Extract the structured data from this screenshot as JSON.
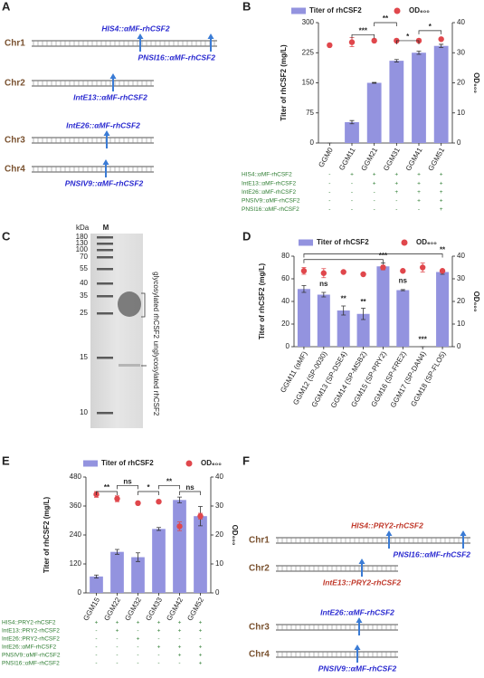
{
  "panel_labels": [
    "A",
    "B",
    "C",
    "D",
    "E",
    "F"
  ],
  "diagrams": [
    {
      "chromosomes": [
        {
          "name": "Chr1",
          "loci": [
            {
              "name": "HIS4::αMF-rhCSF2",
              "color": "#2a2ad0"
            },
            {
              "name": "PNSI16::αMF-rhCSF2",
              "color": "#2a2ad0"
            }
          ]
        },
        {
          "name": "Chr2",
          "loci": [
            {
              "name": "IntE13::αMF-rhCSF2",
              "color": "#2a2ad0"
            }
          ]
        },
        {
          "name": "Chr3",
          "loci": [
            {
              "name": "IntE26::αMF-rhCSF2",
              "color": "#2a2ad0"
            }
          ]
        },
        {
          "name": "Chr4",
          "loci": [
            {
              "name": "PNSIV9::αMF-rhCSF2",
              "color": "#2a2ad0"
            }
          ]
        }
      ]
    },
    {
      "chromosomes": [
        {
          "name": "Chr1",
          "loci": [
            {
              "name": "HIS4::PRY2-rhCSF2",
              "color": "#c0392b"
            },
            {
              "name": "PNSI16::αMF-rhCSF2",
              "color": "#2a2ad0"
            }
          ]
        },
        {
          "name": "Chr2",
          "loci": [
            {
              "name": "IntE13::PRY2-rhCSF2",
              "color": "#c0392b"
            }
          ]
        },
        {
          "name": "Chr3",
          "loci": [
            {
              "name": "IntE26::αMF-rhCSF2",
              "color": "#2a2ad0"
            }
          ]
        },
        {
          "name": "Chr4",
          "loci": [
            {
              "name": "PNSIV9::αMF-rhCSF2",
              "color": "#2a2ad0"
            }
          ]
        }
      ]
    }
  ],
  "gel": {
    "unit": "kDa",
    "lane": "M",
    "markers": [
      180,
      130,
      100,
      70,
      55,
      40,
      35,
      25,
      15,
      10
    ],
    "bands": [
      "glycosylated rhCSF2",
      "unglycosylated rhCSF2"
    ]
  },
  "chart_data": [
    {
      "type": "bar",
      "ylabel": "Titer of rhCSF2 (mg/L)",
      "y2label": "OD₆₀₀",
      "categories": [
        "GGM0",
        "GGM11",
        "GGM21",
        "GGM31",
        "GGM41",
        "GGM51"
      ],
      "series": [
        {
          "name": "Titer of rhCSF2",
          "color": "#9393df",
          "values": [
            0,
            52,
            150,
            205,
            225,
            242
          ],
          "errors": [
            0,
            4,
            1,
            3,
            4,
            4
          ]
        },
        {
          "name": "OD₆₀₀",
          "type": "scatter",
          "axis": "y2",
          "color": "#e0474c",
          "values": [
            32.5,
            33.5,
            34,
            34,
            34,
            34.5
          ],
          "errors": [
            0,
            1.5,
            0,
            0,
            0,
            0
          ]
        }
      ],
      "ylim": [
        0,
        300
      ],
      "yticks": [
        0,
        75,
        150,
        225,
        300
      ],
      "y2lim": [
        0,
        40
      ],
      "y2ticks": [
        0,
        10,
        20,
        30,
        40
      ],
      "annotations": [
        "***",
        "**",
        "*",
        "*"
      ],
      "table": [
        {
          "label": "HIS4::αMF-rhCSF2",
          "cells": [
            "-",
            "+",
            "+",
            "+",
            "+",
            "+"
          ]
        },
        {
          "label": "IntE13::αMF-rhCSF2",
          "cells": [
            "-",
            "-",
            "+",
            "+",
            "+",
            "+"
          ]
        },
        {
          "label": "IntE26::αMF-rhCSF2",
          "cells": [
            "-",
            "-",
            "-",
            "+",
            "+",
            "+"
          ]
        },
        {
          "label": "PNSIV9::αMF-rhCSF2",
          "cells": [
            "-",
            "-",
            "-",
            "-",
            "+",
            "+"
          ]
        },
        {
          "label": "PNSI16::αMF-rhCSF2",
          "cells": [
            "-",
            "-",
            "-",
            "-",
            "-",
            "+"
          ]
        }
      ]
    },
    {
      "type": "bar",
      "ylabel": "Titer of rhCSF2 (mg/L)",
      "y2label": "OD₆₀₀",
      "categories": [
        "GGM11 (αMF)",
        "GGM12 (SP-0030)",
        "GGM13 (SP-DSE4)",
        "GGM14 (SP-MSB2)",
        "GGM15 (SP-PRY2)",
        "GGM16 (SP-FRE2)",
        "GGM17 (SP-DAN4)",
        "GGM18 (SP-FLO5)"
      ],
      "series": [
        {
          "name": "Titer of rhCSF2",
          "color": "#9393df",
          "values": [
            51,
            46,
            32,
            29,
            71,
            50,
            0,
            66
          ],
          "errors": [
            3,
            2,
            4,
            5,
            3,
            0.5,
            0,
            2
          ]
        },
        {
          "name": "OD₆₀₀",
          "type": "scatter",
          "axis": "y2",
          "color": "#e0474c",
          "values": [
            33.5,
            32.5,
            33,
            32,
            35,
            33.5,
            35,
            33.5
          ],
          "errors": [
            1.5,
            2,
            0,
            0,
            1,
            0,
            2,
            0
          ]
        }
      ],
      "ylim": [
        0,
        80
      ],
      "yticks": [
        0,
        20,
        40,
        60,
        80
      ],
      "y2lim": [
        0,
        40
      ],
      "y2ticks": [
        0,
        10,
        20,
        30,
        40
      ],
      "annotations": [
        "ns",
        "**",
        "**",
        "***",
        "ns",
        "***",
        "**"
      ]
    },
    {
      "type": "bar",
      "ylabel": "Titer of rhCSF2 (mg/L)",
      "y2label": "OD₆₀₀",
      "categories": [
        "GGM15",
        "GGM22",
        "GGM32",
        "GGM33",
        "GGM42",
        "GGM52"
      ],
      "series": [
        {
          "name": "Titer of rhCSF2",
          "color": "#9393df",
          "values": [
            68,
            170,
            148,
            265,
            385,
            318
          ],
          "errors": [
            6,
            10,
            18,
            6,
            12,
            40
          ]
        },
        {
          "name": "OD₆₀₀",
          "type": "scatter",
          "axis": "y2",
          "color": "#e0474c",
          "values": [
            34,
            32.5,
            31,
            31.5,
            23,
            26.5
          ],
          "errors": [
            1,
            1,
            0.5,
            0,
            1.5,
            1
          ]
        }
      ],
      "ylim": [
        0,
        480
      ],
      "yticks": [
        0,
        120,
        240,
        360,
        480
      ],
      "y2lim": [
        0,
        40
      ],
      "y2ticks": [
        0,
        10,
        20,
        30,
        40
      ],
      "annotations": [
        "**",
        "ns",
        "*",
        "**",
        "ns"
      ],
      "table": [
        {
          "label": "HIS4::PRY2-rhCSF2",
          "cells": [
            "+",
            "+",
            "+",
            "+",
            "+",
            "+"
          ]
        },
        {
          "label": "IntE13::PRY2-rhCSF2",
          "cells": [
            "-",
            "+",
            "-",
            "+",
            "+",
            "+"
          ]
        },
        {
          "label": "IntE26::PRY2-rhCSF2",
          "cells": [
            "-",
            "-",
            "+",
            "-",
            "-",
            "-"
          ]
        },
        {
          "label": "IntE26::αMF-rhCSF2",
          "cells": [
            "-",
            "-",
            "-",
            "+",
            "+",
            "+"
          ]
        },
        {
          "label": "PNSIV9::αMF-rhCSF2",
          "cells": [
            "-",
            "-",
            "-",
            "-",
            "+",
            "+"
          ]
        },
        {
          "label": "PNSI16::αMF-rhCSF2",
          "cells": [
            "-",
            "-",
            "-",
            "-",
            "-",
            "+"
          ]
        }
      ]
    }
  ]
}
